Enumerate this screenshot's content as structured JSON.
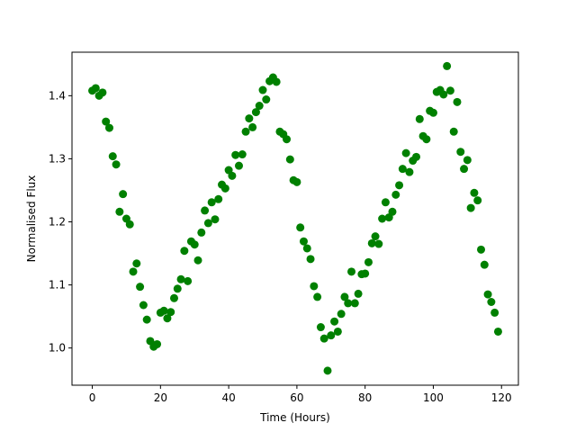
{
  "chart_data": {
    "type": "scatter",
    "xlabel": "Time (Hours)",
    "ylabel": "Normalised Flux",
    "xlim": [
      -5.95,
      124.95
    ],
    "ylim": [
      0.941,
      1.469
    ],
    "grid": false,
    "marker_color": "#008000",
    "x_ticks": [
      0,
      20,
      40,
      60,
      80,
      100,
      120
    ],
    "x_tick_labels": [
      "0",
      "20",
      "40",
      "60",
      "80",
      "100",
      "120"
    ],
    "y_ticks": [
      1.0,
      1.1,
      1.2,
      1.3,
      1.4
    ],
    "y_tick_labels": [
      "1.0",
      "1.1",
      "1.2",
      "1.3",
      "1.4"
    ],
    "points": [
      [
        0,
        1.408
      ],
      [
        1,
        1.412
      ],
      [
        2,
        1.4
      ],
      [
        3,
        1.405
      ],
      [
        4,
        1.359
      ],
      [
        5,
        1.349
      ],
      [
        6,
        1.304
      ],
      [
        7,
        1.291
      ],
      [
        8,
        1.216
      ],
      [
        9,
        1.244
      ],
      [
        10,
        1.205
      ],
      [
        11,
        1.196
      ],
      [
        12,
        1.121
      ],
      [
        13,
        1.134
      ],
      [
        14,
        1.097
      ],
      [
        15,
        1.068
      ],
      [
        16,
        1.045
      ],
      [
        17,
        1.011
      ],
      [
        18,
        1.002
      ],
      [
        19,
        1.006
      ],
      [
        20,
        1.056
      ],
      [
        21,
        1.059
      ],
      [
        22,
        1.047
      ],
      [
        23,
        1.057
      ],
      [
        24,
        1.079
      ],
      [
        25,
        1.094
      ],
      [
        26,
        1.109
      ],
      [
        27,
        1.154
      ],
      [
        28,
        1.106
      ],
      [
        29,
        1.169
      ],
      [
        30,
        1.164
      ],
      [
        31,
        1.139
      ],
      [
        32,
        1.183
      ],
      [
        33,
        1.218
      ],
      [
        34,
        1.198
      ],
      [
        35,
        1.231
      ],
      [
        36,
        1.204
      ],
      [
        37,
        1.236
      ],
      [
        38,
        1.259
      ],
      [
        39,
        1.253
      ],
      [
        40,
        1.282
      ],
      [
        41,
        1.273
      ],
      [
        42,
        1.306
      ],
      [
        43,
        1.289
      ],
      [
        44,
        1.307
      ],
      [
        45,
        1.343
      ],
      [
        46,
        1.364
      ],
      [
        47,
        1.35
      ],
      [
        48,
        1.374
      ],
      [
        49,
        1.384
      ],
      [
        50,
        1.409
      ],
      [
        51,
        1.394
      ],
      [
        52,
        1.423
      ],
      [
        53,
        1.429
      ],
      [
        54,
        1.422
      ],
      [
        55,
        1.343
      ],
      [
        56,
        1.339
      ],
      [
        57,
        1.331
      ],
      [
        58,
        1.299
      ],
      [
        59,
        1.266
      ],
      [
        60,
        1.263
      ],
      [
        61,
        1.191
      ],
      [
        62,
        1.169
      ],
      [
        63,
        1.158
      ],
      [
        64,
        1.141
      ],
      [
        65,
        1.098
      ],
      [
        66,
        1.081
      ],
      [
        67,
        1.033
      ],
      [
        68,
        1.015
      ],
      [
        69,
        0.964
      ],
      [
        70,
        1.02
      ],
      [
        71,
        1.042
      ],
      [
        72,
        1.026
      ],
      [
        73,
        1.054
      ],
      [
        74,
        1.081
      ],
      [
        75,
        1.071
      ],
      [
        76,
        1.121
      ],
      [
        77,
        1.071
      ],
      [
        78,
        1.086
      ],
      [
        79,
        1.117
      ],
      [
        80,
        1.118
      ],
      [
        81,
        1.136
      ],
      [
        82,
        1.166
      ],
      [
        83,
        1.177
      ],
      [
        84,
        1.165
      ],
      [
        85,
        1.205
      ],
      [
        86,
        1.231
      ],
      [
        87,
        1.207
      ],
      [
        88,
        1.216
      ],
      [
        89,
        1.243
      ],
      [
        90,
        1.258
      ],
      [
        91,
        1.284
      ],
      [
        92,
        1.309
      ],
      [
        93,
        1.279
      ],
      [
        94,
        1.297
      ],
      [
        95,
        1.303
      ],
      [
        96,
        1.363
      ],
      [
        97,
        1.336
      ],
      [
        98,
        1.331
      ],
      [
        99,
        1.376
      ],
      [
        100,
        1.373
      ],
      [
        101,
        1.406
      ],
      [
        102,
        1.409
      ],
      [
        103,
        1.402
      ],
      [
        104,
        1.447
      ],
      [
        105,
        1.408
      ],
      [
        106,
        1.343
      ],
      [
        107,
        1.39
      ],
      [
        108,
        1.311
      ],
      [
        109,
        1.284
      ],
      [
        110,
        1.298
      ],
      [
        111,
        1.222
      ],
      [
        112,
        1.246
      ],
      [
        113,
        1.234
      ],
      [
        114,
        1.156
      ],
      [
        115,
        1.132
      ],
      [
        116,
        1.085
      ],
      [
        117,
        1.073
      ],
      [
        118,
        1.056
      ],
      [
        119,
        1.026
      ]
    ]
  }
}
